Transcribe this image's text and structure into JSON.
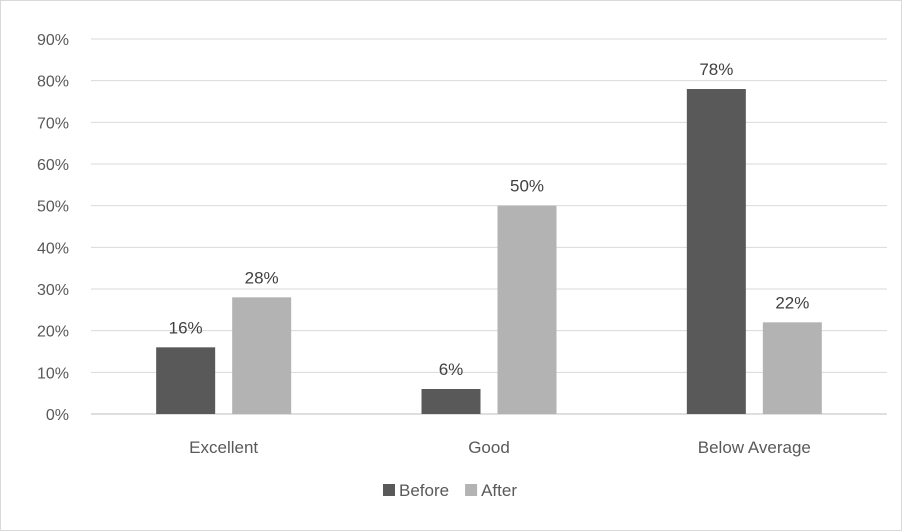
{
  "chart_data": {
    "type": "bar",
    "categories": [
      "Excellent",
      "Good",
      "Below Average"
    ],
    "series": [
      {
        "name": "Before",
        "values": [
          16,
          6,
          78
        ],
        "color": "#595959"
      },
      {
        "name": "After",
        "values": [
          28,
          50,
          22
        ],
        "color": "#b3b3b3"
      }
    ],
    "data_labels": {
      "Before": [
        "16%",
        "6%",
        "78%"
      ],
      "After": [
        "28%",
        "50%",
        "22%"
      ]
    },
    "title": "",
    "xlabel": "",
    "ylabel": "",
    "ylim": [
      0,
      90
    ],
    "y_ticks": [
      0,
      10,
      20,
      30,
      40,
      50,
      60,
      70,
      80,
      90
    ],
    "y_tick_labels": [
      "0%",
      "10%",
      "20%",
      "30%",
      "40%",
      "50%",
      "60%",
      "70%",
      "80%",
      "90%"
    ],
    "grid": true,
    "legend": {
      "position": "bottom",
      "entries": [
        "Before",
        "After"
      ]
    }
  }
}
